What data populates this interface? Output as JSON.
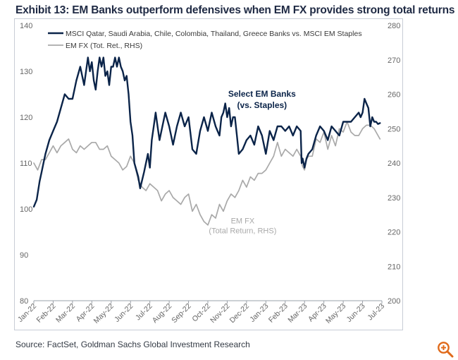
{
  "title": "Exhibit 13: EM Banks outperform defensives when EM FX provides strong total returns",
  "source": "Source: FactSet, Goldman Sachs Global Investment Research",
  "colors": {
    "banks": "#0b2449",
    "fx": "#a9a9a9",
    "axis_text": "#666666",
    "title": "#1f2a44",
    "accent": "#e06a1b"
  },
  "icons": {
    "zoom": "zoom-in-icon"
  },
  "chart_data": {
    "type": "line",
    "title": "Exhibit 13: EM Banks outperform defensives when EM FX provides strong total returns",
    "x_tick_labels": [
      "Jan-22",
      "Feb-22",
      "Mar-22",
      "Apr-22",
      "May-22",
      "Jun-22",
      "Jul-22",
      "Aug-22",
      "Sep-22",
      "Oct-22",
      "Nov-22",
      "Dec-22",
      "Jan-23",
      "Feb-23",
      "Mar-23",
      "Apr-23",
      "May-23",
      "Jun-23",
      "Jul-23"
    ],
    "x_range_months": [
      0,
      18
    ],
    "left_axis": {
      "min": 80,
      "max": 140,
      "ticks": [
        80,
        90,
        100,
        110,
        120,
        130,
        140
      ]
    },
    "right_axis": {
      "min": 200,
      "max": 280,
      "ticks": [
        200,
        210,
        220,
        230,
        240,
        250,
        260,
        270,
        280
      ]
    },
    "legend": [
      {
        "label": "MSCI Qatar, Saudi Arabia, Chile, Colombia, Thailand, Greece Banks vs. MSCI EM Staples",
        "style": "solid dark"
      },
      {
        "label": "EM FX (Tot. Ret., RHS)",
        "style": "solid gray"
      }
    ],
    "legend_placement": "top-left",
    "annotations": [
      {
        "lines": [
          "Select EM Banks",
          "(vs. Staples)"
        ],
        "x": 11.8,
        "y": 124.5,
        "axis": "left"
      },
      {
        "lines": [
          "EM FX",
          "(Total Return, RHS)"
        ],
        "x": 10.8,
        "y": 222.5,
        "axis": "right"
      }
    ],
    "series": [
      {
        "name": "MSCI Qatar, Saudi Arabia, Chile, Colombia, Thailand, Greece Banks vs. MSCI EM Staples",
        "axis": "left",
        "x": [
          0,
          0.15,
          0.3,
          0.4,
          0.5,
          0.6,
          0.8,
          1.0,
          1.2,
          1.4,
          1.6,
          1.8,
          2.0,
          2.2,
          2.4,
          2.6,
          2.8,
          2.9,
          3.0,
          3.1,
          3.2,
          3.3,
          3.4,
          3.5,
          3.6,
          3.7,
          3.8,
          3.9,
          4.0,
          4.1,
          4.2,
          4.3,
          4.4,
          4.5,
          4.6,
          4.7,
          4.8,
          4.9,
          5.0,
          5.1,
          5.2,
          5.4,
          5.5,
          5.7,
          5.9,
          6.0,
          6.1,
          6.2,
          6.3,
          6.4,
          6.5,
          6.6,
          6.8,
          7.0,
          7.2,
          7.4,
          7.6,
          7.8,
          8.0,
          8.2,
          8.4,
          8.6,
          8.8,
          9.0,
          9.2,
          9.4,
          9.5,
          9.6,
          9.7,
          9.8,
          9.9,
          10.0,
          10.1,
          10.2,
          10.3,
          10.4,
          10.5,
          10.6,
          10.8,
          11.0,
          11.2,
          11.4,
          11.6,
          11.8,
          12.0,
          12.2,
          12.4,
          12.6,
          12.8,
          13.0,
          13.2,
          13.4,
          13.6,
          13.8,
          13.85,
          13.9,
          14.0,
          14.1,
          14.2,
          14.4,
          14.6,
          14.8,
          15.0,
          15.2,
          15.4,
          15.6,
          15.8,
          16.0,
          16.2,
          16.4,
          16.6,
          16.8,
          16.9,
          17.0,
          17.1,
          17.2,
          17.3,
          17.4,
          17.5,
          17.6,
          17.7,
          17.8,
          17.9
        ],
        "values": [
          100.5,
          102,
          106,
          108,
          110,
          112,
          115,
          117,
          119,
          122,
          125,
          124,
          124,
          128,
          131,
          127,
          133,
          130,
          132,
          128,
          126,
          130,
          133,
          131,
          133,
          129,
          130,
          127,
          131,
          131,
          133,
          131,
          133,
          131,
          130,
          128,
          129,
          125,
          119,
          116,
          110,
          107,
          104.5,
          108,
          112,
          109,
          115,
          118,
          121,
          118,
          115,
          117,
          121,
          118,
          114,
          118,
          121,
          118,
          120,
          113,
          112,
          117,
          120,
          117,
          121,
          118,
          117,
          116,
          120,
          121,
          123,
          120,
          122,
          118,
          120,
          120,
          116,
          112,
          113,
          115,
          116,
          114,
          118,
          116,
          112,
          117,
          115,
          118,
          118,
          117,
          118,
          116,
          118,
          117,
          110,
          111,
          109,
          111,
          112,
          113,
          116,
          118,
          117,
          115,
          118,
          117,
          116,
          119,
          119,
          119,
          120,
          121,
          120,
          121,
          124,
          123,
          122,
          118,
          120,
          119,
          119,
          118.5,
          118.7
        ]
      },
      {
        "name": "EM FX (Tot. Ret., RHS)",
        "axis": "right",
        "x": [
          0,
          0.2,
          0.4,
          0.6,
          0.8,
          1.0,
          1.2,
          1.4,
          1.6,
          1.8,
          2.0,
          2.2,
          2.4,
          2.6,
          2.8,
          3.0,
          3.2,
          3.4,
          3.6,
          3.8,
          4.0,
          4.2,
          4.4,
          4.6,
          4.8,
          5.0,
          5.2,
          5.4,
          5.6,
          5.8,
          6.0,
          6.2,
          6.4,
          6.6,
          6.8,
          7.0,
          7.2,
          7.4,
          7.6,
          7.8,
          8.0,
          8.2,
          8.4,
          8.6,
          8.8,
          9.0,
          9.2,
          9.4,
          9.6,
          9.8,
          10.0,
          10.2,
          10.4,
          10.6,
          10.8,
          11.0,
          11.2,
          11.4,
          11.6,
          11.8,
          12.0,
          12.2,
          12.4,
          12.6,
          12.8,
          13.0,
          13.2,
          13.4,
          13.6,
          13.8,
          13.85,
          13.9,
          14.0,
          14.1,
          14.2,
          14.4,
          14.6,
          14.8,
          15.0,
          15.2,
          15.4,
          15.6,
          15.8,
          16.0,
          16.2,
          16.4,
          16.6,
          16.8,
          17.0,
          17.2,
          17.4,
          17.6,
          17.8,
          17.9
        ],
        "values": [
          240,
          238,
          241,
          241,
          243,
          245,
          243,
          245,
          246,
          247,
          244,
          243,
          245,
          244,
          245,
          246,
          246,
          244,
          244,
          245,
          242,
          241,
          240,
          238,
          239,
          242,
          240,
          235,
          233,
          232,
          234,
          233,
          232,
          229,
          231,
          232,
          230,
          229,
          228,
          230,
          231,
          226,
          228,
          225,
          223,
          222,
          225,
          224,
          228,
          226,
          229,
          231,
          230,
          232,
          235,
          233,
          236,
          235,
          237,
          237,
          238,
          240,
          242,
          246,
          242,
          244,
          243,
          242,
          244,
          242,
          240,
          239,
          238,
          241,
          242,
          242,
          247,
          246,
          249,
          244,
          248,
          245,
          250,
          249,
          252,
          249,
          248,
          248,
          250,
          251,
          251,
          250,
          248,
          247
        ]
      }
    ]
  }
}
